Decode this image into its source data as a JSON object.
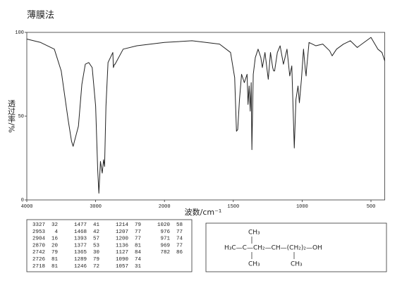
{
  "chart_data": {
    "type": "line",
    "title": "薄膜法",
    "xlabel": "波数/cm⁻¹",
    "ylabel": "透过率/%",
    "color": "#222222",
    "xlim": [
      4000,
      400
    ],
    "xticks": [
      4000,
      3000,
      2000,
      1500,
      1000,
      500
    ],
    "ylim": [
      0,
      100
    ],
    "yticks": [
      0,
      50,
      100
    ],
    "x": [
      4000,
      3800,
      3600,
      3500,
      3400,
      3350,
      3327,
      3250,
      3200,
      3150,
      3100,
      3050,
      3000,
      2970,
      2953,
      2930,
      2904,
      2885,
      2870,
      2850,
      2820,
      2750,
      2742,
      2726,
      2718,
      2600,
      2400,
      2200,
      2000,
      1800,
      1600,
      1520,
      1490,
      1477,
      1468,
      1455,
      1440,
      1420,
      1400,
      1393,
      1385,
      1377,
      1370,
      1365,
      1355,
      1340,
      1320,
      1300,
      1289,
      1270,
      1246,
      1230,
      1214,
      1207,
      1200,
      1180,
      1160,
      1136,
      1127,
      1110,
      1090,
      1075,
      1057,
      1045,
      1030,
      1020,
      1005,
      990,
      976,
      971,
      969,
      950,
      900,
      850,
      800,
      782,
      750,
      700,
      650,
      600,
      550,
      500,
      450,
      420,
      400
    ],
    "values": [
      96,
      94,
      90,
      77,
      48,
      35,
      32,
      44,
      69,
      81,
      82,
      79,
      56,
      18,
      4,
      23,
      16,
      24,
      20,
      56,
      82,
      88,
      79,
      81,
      81,
      90,
      92,
      93,
      94,
      95,
      93,
      88,
      73,
      41,
      42,
      60,
      75,
      70,
      75,
      57,
      68,
      53,
      70,
      30,
      75,
      85,
      90,
      85,
      79,
      88,
      72,
      88,
      79,
      77,
      77,
      88,
      92,
      81,
      84,
      90,
      74,
      80,
      31,
      60,
      68,
      58,
      72,
      90,
      77,
      74,
      77,
      94,
      92,
      93,
      89,
      86,
      90,
      93,
      95,
      91,
      94,
      97,
      90,
      88,
      83
    ]
  },
  "peak_table": [
    [
      3327,
      32
    ],
    [
      2953,
      4
    ],
    [
      2904,
      16
    ],
    [
      2870,
      20
    ],
    [
      2742,
      79
    ],
    [
      2726,
      81
    ],
    [
      2718,
      81
    ],
    [
      1477,
      41
    ],
    [
      1468,
      42
    ],
    [
      1393,
      57
    ],
    [
      1377,
      53
    ],
    [
      1365,
      30
    ],
    [
      1289,
      79
    ],
    [
      1246,
      72
    ],
    [
      1214,
      79
    ],
    [
      1207,
      77
    ],
    [
      1200,
      77
    ],
    [
      1136,
      81
    ],
    [
      1127,
      84
    ],
    [
      1090,
      74
    ],
    [
      1057,
      31
    ],
    [
      1020,
      58
    ],
    [
      976,
      77
    ],
    [
      971,
      74
    ],
    [
      969,
      77
    ],
    [
      782,
      86
    ]
  ],
  "structure": {
    "top": "CH₃",
    "main": "H₃C—C—CH₂—CH—(CH₂)₂—OH",
    "bottom_left": "CH₃",
    "bottom_right": "CH₃"
  }
}
